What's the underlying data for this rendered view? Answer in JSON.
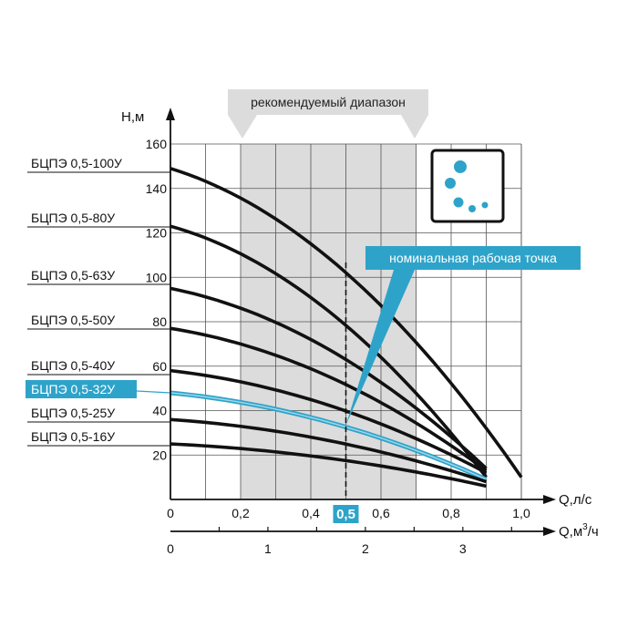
{
  "chart_data": {
    "type": "line",
    "ylabel": "Н,м",
    "x_axis_primary": {
      "label": "Q,л/с",
      "ticks": [
        "0",
        "0,2",
        "0,4",
        "0,5",
        "0,6",
        "0,8",
        "1,0"
      ],
      "range": [
        0,
        1.0
      ]
    },
    "x_axis_secondary": {
      "label_base": "Q,м",
      "label_sup": "3",
      "label_end": "/ч",
      "ticks": [
        "0",
        "1",
        "2",
        "3"
      ]
    },
    "y_ticks": [
      "20",
      "40",
      "60",
      "80",
      "100",
      "120",
      "140",
      "160"
    ],
    "ylim": [
      0,
      160
    ],
    "recommended_range": {
      "label": "рекомендуемый диапазон",
      "x": [
        0.2,
        0.7
      ]
    },
    "nominal_point": {
      "label": "номинальная рабочая точка",
      "x": 0.5
    },
    "series": [
      {
        "name": "БЦПЭ 0,5-100У",
        "h0": 149,
        "h_end": 10,
        "x_end": 1.0,
        "highlight": false
      },
      {
        "name": "БЦПЭ 0,5-80У",
        "h0": 123,
        "h_end": 10,
        "x_end": 0.9,
        "highlight": false
      },
      {
        "name": "БЦПЭ 0,5-63У",
        "h0": 95,
        "h_end": 14,
        "x_end": 0.9,
        "highlight": false
      },
      {
        "name": "БЦПЭ 0,5-50У",
        "h0": 77,
        "h_end": 13,
        "x_end": 0.9,
        "highlight": false
      },
      {
        "name": "БЦПЭ 0,5-40У",
        "h0": 58,
        "h_end": 12,
        "x_end": 0.9,
        "highlight": false
      },
      {
        "name": "БЦПЭ 0,5-32У",
        "h0": 48,
        "h_end": 9,
        "x_end": 0.9,
        "highlight": true
      },
      {
        "name": "БЦПЭ 0,5-25У",
        "h0": 36,
        "h_end": 8,
        "x_end": 0.9,
        "highlight": false
      },
      {
        "name": "БЦПЭ 0,5-16У",
        "h0": 25,
        "h_end": 6,
        "x_end": 0.9,
        "highlight": false
      }
    ],
    "colors": {
      "accent": "#2ea3c9",
      "accent_light": "#9fd6ea",
      "range_fill": "#dcdcdc",
      "grid": "#555555",
      "curve": "#111111"
    }
  }
}
